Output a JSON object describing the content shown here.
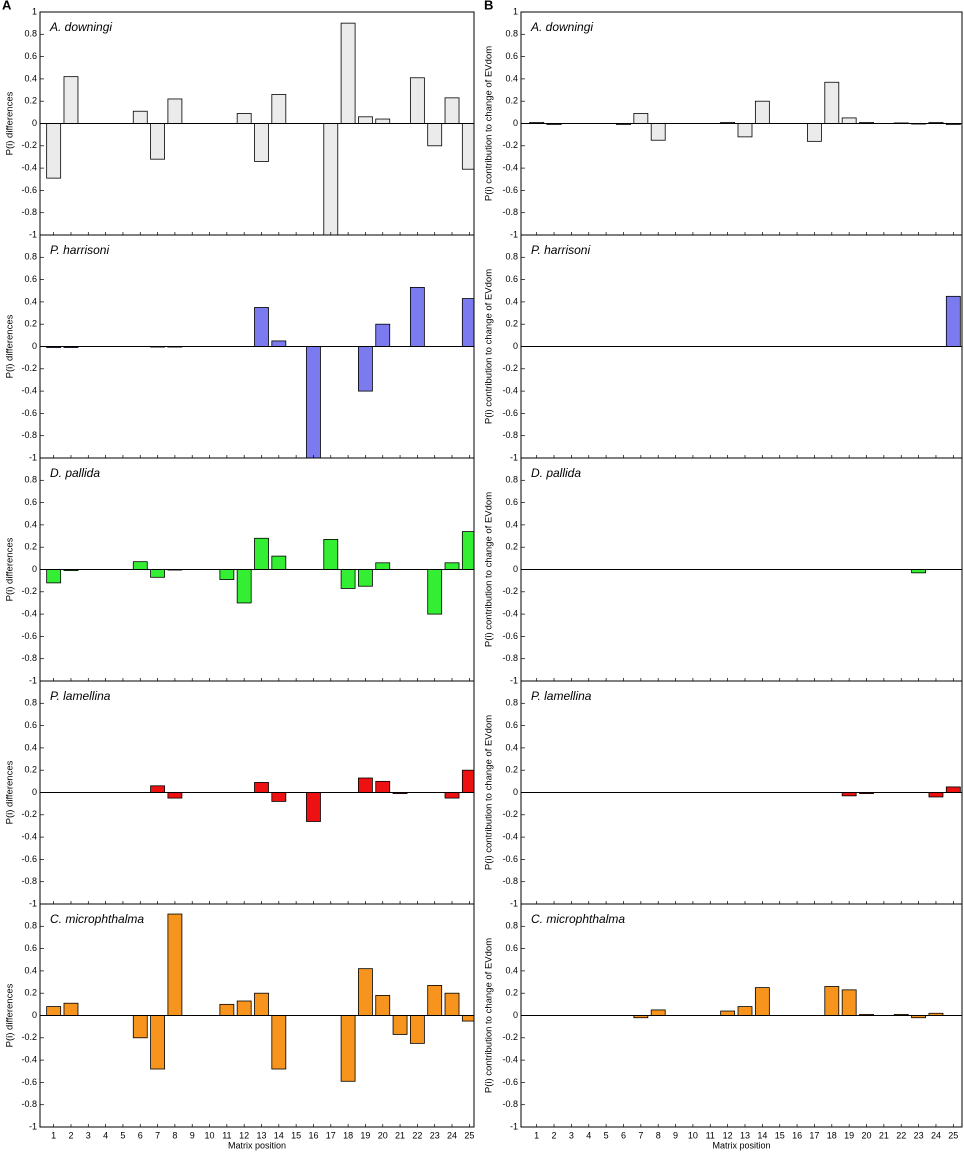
{
  "chart_data": [
    {
      "type": "bar",
      "panel_label": "A",
      "title": "A. downingi",
      "ylabel": "P(i) differences",
      "color": "#ebebeb",
      "values": [
        -0.49,
        0.42,
        0,
        0,
        0,
        0.11,
        -0.32,
        0.22,
        0,
        0,
        0,
        0.09,
        -0.34,
        0.26,
        0,
        0,
        -1.0,
        0.9,
        0.06,
        0.04,
        0,
        0.41,
        -0.2,
        0.23,
        -0.41
      ],
      "ylim": [
        -1,
        1
      ],
      "yticks": [
        1,
        0.8,
        0.6,
        0.4,
        0.2,
        0,
        -0.2,
        -0.4,
        -0.6,
        -0.8,
        -1
      ]
    },
    {
      "type": "bar",
      "title": "P. harrisoni",
      "ylabel": "P(i) differences",
      "color": "#7b7bef",
      "values": [
        -0.01,
        -0.01,
        0,
        0,
        0,
        0,
        -0.005,
        -0.005,
        0,
        0,
        0,
        0,
        0.35,
        0.05,
        0,
        -1.0,
        0,
        0,
        -0.4,
        0.2,
        0,
        0.53,
        0,
        0,
        0.43
      ],
      "ylim": [
        -1,
        1
      ],
      "yticks": [
        0.8,
        0.6,
        0.4,
        0.2,
        0,
        -0.2,
        -0.4,
        -0.6,
        -0.8,
        -1
      ]
    },
    {
      "type": "bar",
      "title": "D. pallida",
      "ylabel": "P(i) differences",
      "color": "#33ee33",
      "values": [
        -0.12,
        -0.01,
        0,
        0,
        0,
        0.07,
        -0.07,
        -0.005,
        0,
        0,
        -0.09,
        -0.3,
        0.28,
        0.12,
        0,
        0,
        0.27,
        -0.17,
        -0.15,
        0.06,
        0,
        0,
        -0.4,
        0.06,
        0.34
      ],
      "ylim": [
        -1,
        1
      ],
      "yticks": [
        0.8,
        0.6,
        0.4,
        0.2,
        0,
        -0.2,
        -0.4,
        -0.6,
        -0.8,
        -1
      ]
    },
    {
      "type": "bar",
      "title": "P. lamellina",
      "ylabel": "P(i) differences",
      "color": "#ee1111",
      "values": [
        0,
        0,
        0,
        0,
        0,
        0,
        0.06,
        -0.05,
        0,
        0,
        0,
        0,
        0.09,
        -0.08,
        0,
        -0.26,
        0,
        0,
        0.13,
        0.1,
        -0.01,
        0,
        0,
        -0.05,
        0.2
      ],
      "ylim": [
        -1,
        1
      ],
      "yticks": [
        0.8,
        0.6,
        0.4,
        0.2,
        0,
        -0.2,
        -0.4,
        -0.6,
        -0.8,
        -1
      ]
    },
    {
      "type": "bar",
      "title": "C. microphthalma",
      "ylabel": "P(i) differences",
      "xlabel": "Matrix position",
      "color": "#f7941d",
      "categories": [
        "1",
        "2",
        "3",
        "4",
        "5",
        "6",
        "7",
        "8",
        "9",
        "10",
        "11",
        "12",
        "13",
        "14",
        "15",
        "16",
        "17",
        "18",
        "19",
        "20",
        "21",
        "22",
        "23",
        "24",
        "25"
      ],
      "values": [
        0.08,
        0.11,
        0,
        0,
        0,
        -0.2,
        -0.48,
        0.91,
        0,
        0,
        0.1,
        0.13,
        0.2,
        -0.48,
        0,
        0,
        0,
        -0.59,
        0.42,
        0.18,
        -0.17,
        -0.25,
        0.27,
        0.2,
        -0.05
      ],
      "ylim": [
        -1,
        1
      ],
      "yticks": [
        0.8,
        0.6,
        0.4,
        0.2,
        0,
        -0.2,
        -0.4,
        -0.6,
        -0.8,
        -1
      ]
    },
    {
      "type": "bar",
      "panel_label": "B",
      "title": "A. downingi",
      "ylabel": "P(i) contribution to change of EVdom",
      "color": "#ebebeb",
      "values": [
        0.01,
        -0.01,
        0,
        0,
        0,
        -0.01,
        0.09,
        -0.15,
        0,
        0,
        0,
        0.01,
        -0.12,
        0.2,
        0,
        0,
        -0.16,
        0.37,
        0.05,
        0.01,
        0,
        0.005,
        -0.005,
        0.01,
        -0.01
      ],
      "ylim": [
        -1,
        1
      ],
      "yticks": [
        1,
        0.8,
        0.6,
        0.4,
        0.2,
        0,
        -0.2,
        -0.4,
        -0.6,
        -0.8,
        -1
      ]
    },
    {
      "type": "bar",
      "title": "P. harrisoni",
      "ylabel": "P(i) contribution to change of EVdom",
      "color": "#7b7bef",
      "values": [
        0,
        0,
        0,
        0,
        0,
        0,
        0,
        0,
        0,
        0,
        0,
        0,
        0,
        0,
        0,
        0,
        0,
        0,
        0,
        0,
        0,
        0,
        0,
        0,
        0.45
      ],
      "ylim": [
        -1,
        1
      ],
      "yticks": [
        0.8,
        0.6,
        0.4,
        0.2,
        0,
        -0.2,
        -0.4,
        -0.6,
        -0.8,
        -1
      ]
    },
    {
      "type": "bar",
      "title": "D. pallida",
      "ylabel": "P(i) contribution to change of EVdom",
      "color": "#33ee33",
      "values": [
        0,
        0,
        0,
        0,
        0,
        0,
        0,
        0,
        0,
        0,
        0,
        0,
        0,
        0,
        0,
        0,
        0,
        0,
        0,
        0,
        0,
        0,
        -0.03,
        0,
        0
      ],
      "ylim": [
        -1,
        1
      ],
      "yticks": [
        0.8,
        0.6,
        0.4,
        0.2,
        0,
        -0.2,
        -0.4,
        -0.6,
        -0.8,
        -1
      ]
    },
    {
      "type": "bar",
      "title": "P. lamellina",
      "ylabel": "P(i) contribution to change of EVdom",
      "color": "#ee1111",
      "values": [
        0,
        0,
        0,
        0,
        0,
        0,
        0,
        0,
        0,
        0,
        0,
        0,
        0,
        0,
        0,
        0,
        0,
        0,
        -0.03,
        -0.01,
        0,
        0,
        0,
        -0.04,
        0.05
      ],
      "ylim": [
        -1,
        1
      ],
      "yticks": [
        0.8,
        0.6,
        0.4,
        0.2,
        0,
        -0.2,
        -0.4,
        -0.6,
        -0.8,
        -1
      ]
    },
    {
      "type": "bar",
      "title": "C. microphthalma",
      "ylabel": "P(i) contribution to change of EVdom",
      "xlabel": "Matrix position",
      "color": "#f7941d",
      "categories": [
        "1",
        "2",
        "3",
        "4",
        "5",
        "6",
        "7",
        "8",
        "9",
        "10",
        "11",
        "12",
        "13",
        "14",
        "15",
        "16",
        "17",
        "18",
        "19",
        "20",
        "21",
        "22",
        "23",
        "24",
        "25"
      ],
      "values": [
        0,
        0,
        0,
        0,
        0,
        0,
        -0.02,
        0.05,
        0,
        0,
        0,
        0.04,
        0.08,
        0.25,
        0,
        0,
        0,
        0.26,
        0.23,
        0.01,
        0,
        0.01,
        -0.02,
        0.02,
        0
      ],
      "ylim": [
        -1,
        1
      ],
      "yticks": [
        0.8,
        0.6,
        0.4,
        0.2,
        0,
        -0.2,
        -0.4,
        -0.6,
        -0.8,
        -1
      ]
    }
  ]
}
